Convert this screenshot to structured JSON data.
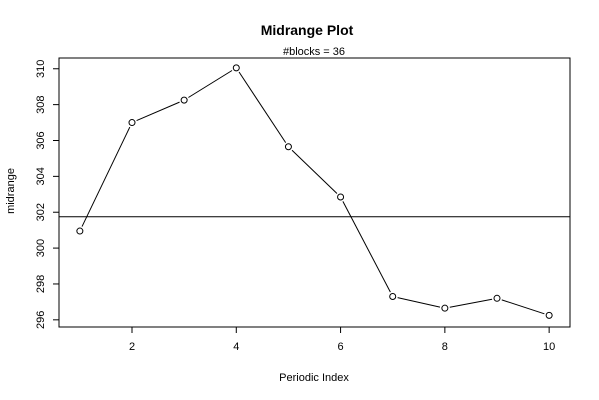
{
  "chart_data": {
    "type": "line",
    "title": "Midrange Plot",
    "subtitle": "#blocks =  36",
    "xlabel": "Periodic Index",
    "ylabel": "midrange",
    "xlim": [
      0.6,
      10.4
    ],
    "ylim": [
      295.6,
      310.6
    ],
    "x_ticks": [
      2,
      4,
      6,
      8,
      10
    ],
    "y_ticks": [
      296,
      298,
      300,
      302,
      304,
      306,
      308,
      310
    ],
    "x_tick_labels": [
      "2",
      "4",
      "6",
      "8",
      "10"
    ],
    "y_tick_labels": [
      "296",
      "298",
      "300",
      "302",
      "304",
      "306",
      "308",
      "310"
    ],
    "series": [
      {
        "x": [
          1,
          2,
          3,
          4,
          5,
          6,
          7,
          8,
          9,
          10
        ],
        "values": [
          300.95,
          307.0,
          308.25,
          310.05,
          305.65,
          302.85,
          297.3,
          296.65,
          297.2,
          296.25
        ]
      }
    ],
    "reference_line": {
      "y": 301.75
    },
    "grid": false,
    "marker": "open-circle",
    "line_color": "#000000"
  }
}
